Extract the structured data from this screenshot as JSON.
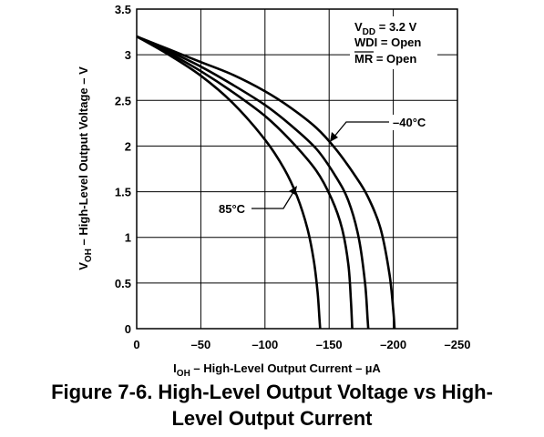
{
  "chart_data": {
    "type": "line",
    "title": "",
    "xlabel_main": "I",
    "xlabel_sub": "OH",
    "xlabel_rest": " – High-Level Output Current – µA",
    "ylabel_main": "V",
    "ylabel_sub": "OH",
    "ylabel_rest": " – High-Level Output Voltage – V",
    "xlim": [
      0,
      -250
    ],
    "ylim": [
      0,
      3.5
    ],
    "x_ticks": [
      0,
      -50,
      -100,
      -150,
      -200,
      -250
    ],
    "x_tick_labels": [
      "0",
      "–50",
      "–100",
      "–150",
      "–200",
      "–250"
    ],
    "y_ticks": [
      0,
      0.5,
      1,
      1.5,
      2,
      2.5,
      3,
      3.5
    ],
    "y_tick_labels": [
      "0",
      "0.5",
      "1",
      "1.5",
      "2",
      "2.5",
      "3",
      "3.5"
    ],
    "grid": true,
    "series": [
      {
        "x": [
          0,
          -25,
          -50,
          -75,
          -100,
          -120,
          -140,
          -155,
          -170,
          -180,
          -190,
          -197,
          -200,
          -201
        ],
        "y": [
          3.2,
          3.06,
          2.92,
          2.78,
          2.6,
          2.42,
          2.2,
          1.97,
          1.68,
          1.45,
          1.1,
          0.6,
          0.2,
          0
        ]
      },
      {
        "x": [
          0,
          -25,
          -50,
          -75,
          -100,
          -120,
          -140,
          -155,
          -165,
          -173,
          -178,
          -180,
          -180.5
        ],
        "y": [
          3.2,
          3.04,
          2.87,
          2.67,
          2.45,
          2.23,
          1.97,
          1.67,
          1.4,
          1.0,
          0.5,
          0.1,
          0
        ]
      },
      {
        "x": [
          0,
          -25,
          -50,
          -75,
          -100,
          -120,
          -140,
          -152,
          -160,
          -165,
          -167,
          -168
        ],
        "y": [
          3.2,
          3.02,
          2.82,
          2.59,
          2.33,
          2.06,
          1.73,
          1.42,
          1.1,
          0.7,
          0.3,
          0
        ]
      },
      {
        "x": [
          0,
          -25,
          -50,
          -75,
          -100,
          -115,
          -125,
          -133,
          -138,
          -141,
          -142.5,
          -143
        ],
        "y": [
          3.2,
          3.0,
          2.77,
          2.47,
          2.07,
          1.75,
          1.45,
          1.1,
          0.75,
          0.4,
          0.1,
          0
        ]
      }
    ],
    "annotations": {
      "cond_vdd_main": "V",
      "cond_vdd_sub": "DD",
      "cond_vdd_rest": " = 3.2 V",
      "cond_wdi": "WDI = Open",
      "cond_mr_main": "MR",
      "cond_mr_rest": " = Open",
      "label_cold": "–40°C",
      "label_hot": "85°C"
    },
    "caption_line1": "Figure 7-6. High-Level Output Voltage vs High-",
    "caption_line2": "Level Output Current"
  }
}
